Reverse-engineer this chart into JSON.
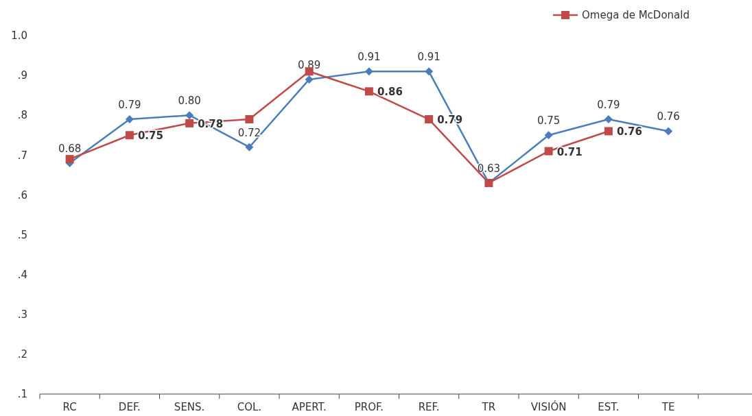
{
  "chart_data": {
    "type": "line",
    "categories": [
      "RC",
      "DEF.",
      "SENS.",
      "COL.",
      "APERT.",
      "PROF.",
      "REF.",
      "TR",
      "VISIÓN",
      "EST.",
      "TE",
      null
    ],
    "ylim": [
      0.1,
      1.0
    ],
    "yticks": [
      {
        "value": 0.1,
        "label": ".1"
      },
      {
        "value": 0.2,
        "label": ".2"
      },
      {
        "value": 0.3,
        "label": ".3"
      },
      {
        "value": 0.4,
        "label": ".4"
      },
      {
        "value": 0.5,
        "label": ".5"
      },
      {
        "value": 0.6,
        "label": ".6"
      },
      {
        "value": 0.7,
        "label": ".7"
      },
      {
        "value": 0.8,
        "label": ".8"
      },
      {
        "value": 0.9,
        "label": ".9"
      },
      {
        "value": 1.0,
        "label": "1.0"
      }
    ],
    "grid": false,
    "legend": "top right",
    "series": [
      {
        "color": "#4a7ebb",
        "marker": "diamond",
        "values": [
          0.68,
          0.79,
          0.8,
          0.72,
          0.89,
          0.91,
          0.91,
          0.63,
          0.75,
          0.79,
          0.76,
          null
        ],
        "value_labels": [
          "0.68",
          "0.79",
          "0.80",
          "0.72",
          "0.89",
          "0.91",
          "0.91",
          "0.63",
          "0.75",
          "0.79",
          "0.76",
          null
        ]
      },
      {
        "name": "Omega de McDonald",
        "color": "#be4b48",
        "marker": "square",
        "values": [
          0.69,
          0.75,
          0.78,
          0.79,
          0.91,
          0.86,
          0.79,
          0.63,
          0.71,
          0.76,
          null,
          null
        ],
        "value_labels": [
          null,
          "0.75",
          "0.78",
          null,
          null,
          "0.86",
          "0.79",
          null,
          "0.71",
          "0.76",
          null,
          null
        ]
      }
    ]
  }
}
